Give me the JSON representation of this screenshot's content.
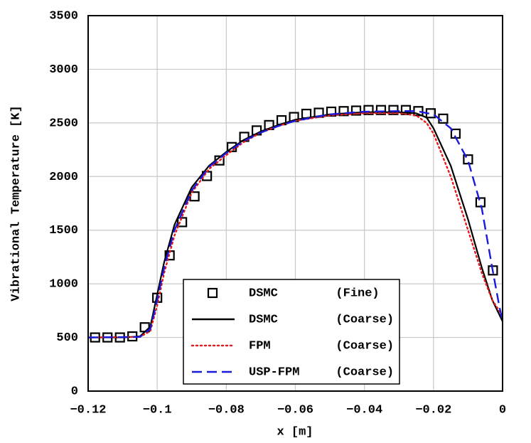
{
  "chart_data": {
    "type": "line",
    "xlabel": "x [m]",
    "ylabel": "Vibrational Temperature [K]",
    "xlim": [
      -0.12,
      0
    ],
    "ylim": [
      0,
      3500
    ],
    "xticks": [
      {
        "value": -0.12,
        "label": "−0.12"
      },
      {
        "value": -0.1,
        "label": "−0.1"
      },
      {
        "value": -0.08,
        "label": "−0.08"
      },
      {
        "value": -0.06,
        "label": "−0.06"
      },
      {
        "value": -0.04,
        "label": "−0.04"
      },
      {
        "value": -0.02,
        "label": "−0.02"
      },
      0
    ],
    "yticks": [
      0,
      500,
      1000,
      1500,
      2000,
      2500,
      3000,
      3500
    ],
    "grid": true,
    "legend": "bottom-center",
    "series": [
      {
        "name": "DSMC        (Fine)",
        "color": "#000000",
        "style": "markers",
        "x": [
          -0.118,
          -0.1144,
          -0.1108,
          -0.1072,
          -0.1036,
          -0.1,
          -0.0964,
          -0.0928,
          -0.0892,
          -0.0856,
          -0.082,
          -0.0784,
          -0.0748,
          -0.0712,
          -0.0676,
          -0.064,
          -0.0604,
          -0.0568,
          -0.0532,
          -0.0496,
          -0.046,
          -0.0424,
          -0.0388,
          -0.0352,
          -0.0316,
          -0.028,
          -0.0244,
          -0.0208,
          -0.0172,
          -0.0136,
          -0.01,
          -0.0064,
          -0.0028
        ],
        "values": [
          500,
          500,
          500,
          510,
          595,
          870,
          1265,
          1575,
          1815,
          2005,
          2150,
          2275,
          2370,
          2430,
          2480,
          2525,
          2555,
          2585,
          2595,
          2605,
          2610,
          2615,
          2620,
          2620,
          2620,
          2620,
          2610,
          2590,
          2540,
          2400,
          2160,
          1760,
          1125
        ]
      },
      {
        "name": "DSMC        (Coarse)",
        "color": "#000000",
        "style": "solid",
        "x": [
          -0.12,
          -0.11,
          -0.105,
          -0.102,
          -0.1,
          -0.098,
          -0.095,
          -0.09,
          -0.085,
          -0.08,
          -0.075,
          -0.07,
          -0.065,
          -0.06,
          -0.05,
          -0.04,
          -0.03,
          -0.025,
          -0.022,
          -0.02,
          -0.015,
          -0.01,
          -0.006,
          -0.003,
          0
        ],
        "values": [
          500,
          500,
          510,
          600,
          900,
          1200,
          1550,
          1900,
          2100,
          2230,
          2340,
          2420,
          2480,
          2530,
          2580,
          2600,
          2600,
          2590,
          2550,
          2450,
          2100,
          1600,
          1150,
          850,
          650
        ]
      },
      {
        "name": "FPM         (Coarse)",
        "color": "#e8191b",
        "style": "dotted",
        "x": [
          -0.12,
          -0.105,
          -0.102,
          -0.1,
          -0.098,
          -0.095,
          -0.09,
          -0.085,
          -0.08,
          -0.075,
          -0.07,
          -0.065,
          -0.06,
          -0.05,
          -0.04,
          -0.03,
          -0.025,
          -0.022,
          -0.02,
          -0.015,
          -0.01,
          -0.006,
          -0.003,
          0
        ],
        "values": [
          500,
          505,
          560,
          800,
          1100,
          1450,
          1850,
          2070,
          2200,
          2320,
          2410,
          2470,
          2520,
          2570,
          2590,
          2590,
          2570,
          2500,
          2400,
          2000,
          1500,
          1100,
          850,
          700
        ]
      },
      {
        "name": "USP-FPM     (Coarse)",
        "color": "#1a1adc",
        "style": "dashed",
        "x": [
          -0.12,
          -0.105,
          -0.102,
          -0.1,
          -0.098,
          -0.095,
          -0.09,
          -0.085,
          -0.08,
          -0.075,
          -0.07,
          -0.065,
          -0.06,
          -0.05,
          -0.04,
          -0.03,
          -0.025,
          -0.02,
          -0.015,
          -0.01,
          -0.006,
          -0.003,
          -0.001,
          0
        ],
        "values": [
          500,
          505,
          580,
          850,
          1150,
          1500,
          1870,
          2090,
          2220,
          2330,
          2410,
          2470,
          2520,
          2580,
          2605,
          2610,
          2610,
          2580,
          2450,
          2150,
          1700,
          1150,
          800,
          650
        ]
      }
    ]
  }
}
